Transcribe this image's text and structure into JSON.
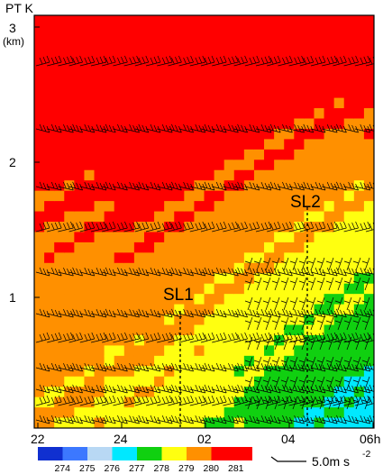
{
  "chart_data": {
    "type": "heatmap",
    "title": "PT K",
    "ylabel": "(km)",
    "y_ticks": [
      "1",
      "2",
      "3"
    ],
    "x_ticks": [
      "22",
      "24",
      "02",
      "04",
      "06h"
    ],
    "colorbar": {
      "labels": [
        "274",
        "275",
        "276",
        "277",
        "278",
        "279",
        "280",
        "281"
      ],
      "colors": [
        "#1030d0",
        "#3c78ff",
        "#b8d8f4",
        "#00e8ff",
        "#10d010",
        "#ffff10",
        "#ff9000",
        "#ff0000"
      ]
    },
    "wind_legend": "5.0m s",
    "wind_legend_exp": "-2",
    "annotations": [
      "SL1",
      "SL2"
    ]
  }
}
